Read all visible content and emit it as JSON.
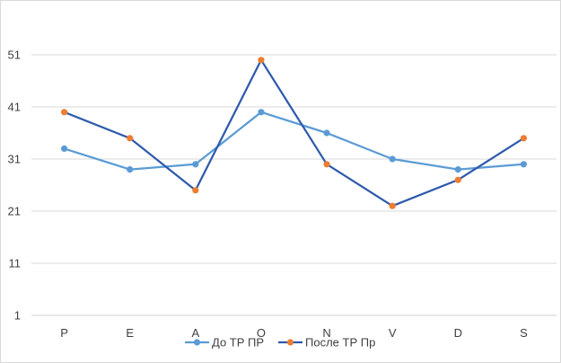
{
  "chart_data": {
    "type": "line",
    "title": "",
    "xlabel": "",
    "ylabel": "",
    "categories": [
      "P",
      "E",
      "A",
      "O",
      "N",
      "V",
      "D",
      "S"
    ],
    "yticks": [
      1,
      11,
      21,
      31,
      41,
      51
    ],
    "ylim": [
      1,
      61
    ],
    "grid": true,
    "legend_position": "bottom",
    "series": [
      {
        "name": "До ТР ПР",
        "values": [
          33,
          29,
          30,
          40,
          36,
          31,
          29,
          30
        ],
        "line_color": "#5b9bd5",
        "marker_color": "#5b9bd5"
      },
      {
        "name": "После ТР Пр",
        "values": [
          40,
          35,
          25,
          50,
          30,
          22,
          27,
          35
        ],
        "line_color": "#2e5aac",
        "marker_color": "#ed7d31"
      }
    ]
  }
}
